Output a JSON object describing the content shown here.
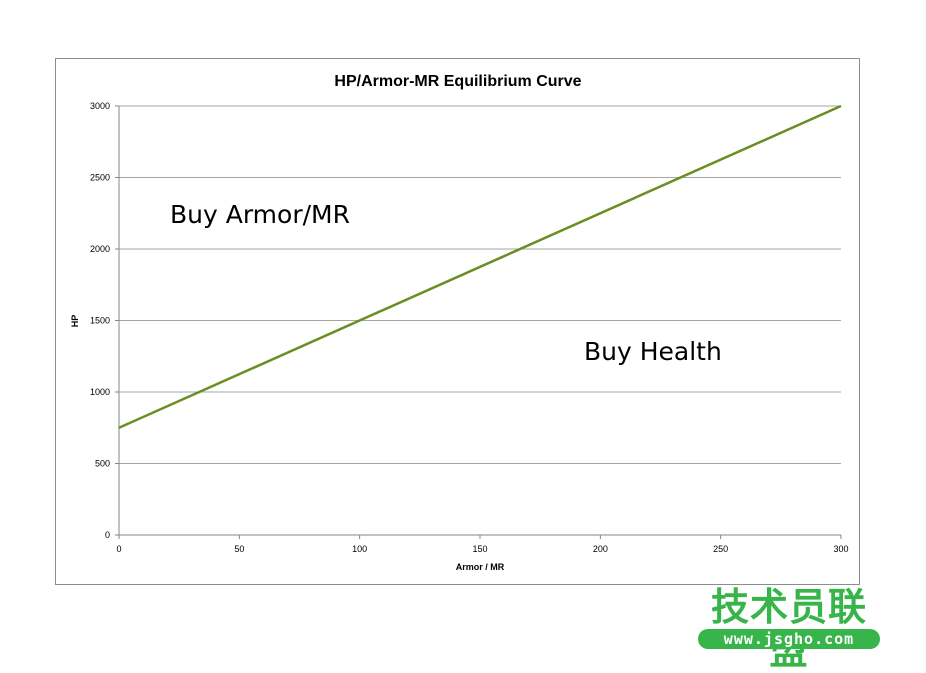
{
  "chart_data": {
    "type": "line",
    "title": "HP/Armor-MR Equilibrium Curve",
    "xlabel": "Armor / MR",
    "ylabel": "HP",
    "xlim": [
      0,
      300
    ],
    "ylim": [
      0,
      3000
    ],
    "x_ticks": [
      "0",
      "50",
      "100",
      "150",
      "200",
      "250",
      "300"
    ],
    "y_ticks": [
      "0",
      "500",
      "1000",
      "1500",
      "2000",
      "2500",
      "3000"
    ],
    "grid": "horizontal",
    "legend": "none",
    "series": [
      {
        "x": [
          0,
          300
        ],
        "y": [
          750,
          3000
        ],
        "color": "#6b8e23"
      }
    ],
    "annotations": [
      "Buy Armor/MR",
      "Buy Health"
    ]
  },
  "colors": {
    "line": "#6b8e23",
    "gridline": "#a6a6a6",
    "axis": "#868686",
    "watermark": "#37b54a"
  },
  "watermark": {
    "text": "技术员联盟",
    "url": "www.jsgho.com"
  }
}
